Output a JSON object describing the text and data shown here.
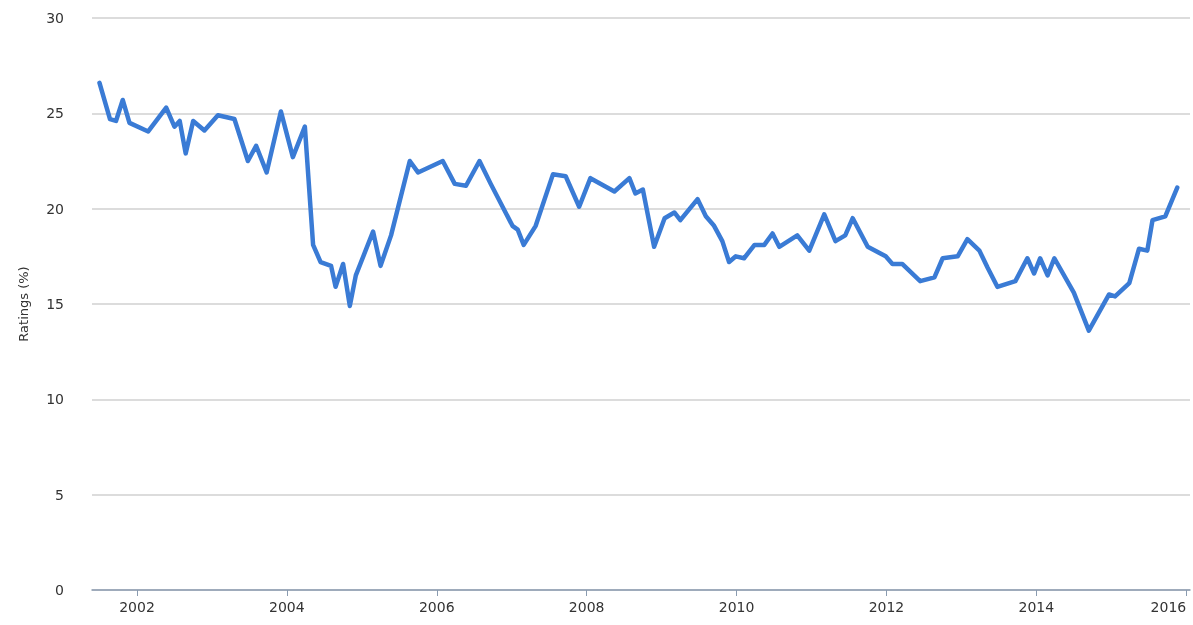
{
  "chart_data": {
    "type": "line",
    "ylabel": "Ratings (%)",
    "grid": "y",
    "marker": "none",
    "line_style": "solid",
    "xlim": [
      2001.4,
      2016.05
    ],
    "xticks": [
      2002,
      2004,
      2006,
      2008,
      2010,
      2012,
      2014,
      2016
    ],
    "ylim": [
      0,
      30
    ],
    "yticks": [
      0,
      5,
      10,
      15,
      20,
      25,
      30
    ],
    "series": [
      {
        "color": "#3a7bd5",
        "x": [
          2001.5,
          2001.64,
          2001.72,
          2001.81,
          2001.9,
          2002.15,
          2002.39,
          2002.5,
          2002.57,
          2002.65,
          2002.75,
          2002.9,
          2003.08,
          2003.3,
          2003.48,
          2003.59,
          2003.73,
          2003.92,
          2004.08,
          2004.24,
          2004.35,
          2004.45,
          2004.59,
          2004.65,
          2004.75,
          2004.84,
          2004.92,
          2005.15,
          2005.25,
          2005.39,
          2005.64,
          2005.75,
          2006.08,
          2006.24,
          2006.39,
          2006.57,
          2006.72,
          2007.01,
          2007.08,
          2007.16,
          2007.32,
          2007.55,
          2007.72,
          2007.9,
          2008.05,
          2008.37,
          2008.57,
          2008.65,
          2008.75,
          2008.9,
          2009.04,
          2009.17,
          2009.25,
          2009.48,
          2009.59,
          2009.7,
          2009.81,
          2009.9,
          2009.99,
          2010.1,
          2010.24,
          2010.37,
          2010.48,
          2010.57,
          2010.81,
          2010.97,
          2011.17,
          2011.32,
          2011.45,
          2011.55,
          2011.75,
          2011.99,
          2012.08,
          2012.21,
          2012.45,
          2012.64,
          2012.75,
          2012.95,
          2013.08,
          2013.24,
          2013.35,
          2013.48,
          2013.72,
          2013.88,
          2013.97,
          2014.05,
          2014.15,
          2014.24,
          2014.5,
          2014.7,
          2014.97,
          2015.05,
          2015.24,
          2015.37,
          2015.48,
          2015.55,
          2015.72,
          2015.88
        ],
        "values": [
          26.6,
          24.7,
          24.6,
          25.7,
          24.5,
          24.05,
          25.3,
          24.3,
          24.6,
          22.9,
          24.6,
          24.1,
          24.9,
          24.7,
          22.5,
          23.3,
          21.9,
          25.1,
          22.7,
          24.3,
          18.1,
          17.2,
          17.0,
          15.9,
          17.1,
          14.9,
          16.5,
          18.8,
          17.0,
          18.6,
          22.5,
          21.9,
          22.5,
          21.3,
          21.2,
          22.5,
          21.3,
          19.1,
          18.9,
          18.1,
          19.1,
          21.8,
          21.7,
          20.1,
          21.6,
          20.9,
          21.6,
          20.8,
          21.0,
          18.0,
          19.5,
          19.8,
          19.4,
          20.5,
          19.6,
          19.1,
          18.3,
          17.2,
          17.5,
          17.4,
          18.1,
          18.1,
          18.7,
          18.0,
          18.6,
          17.8,
          19.7,
          18.3,
          18.6,
          19.5,
          18.0,
          17.5,
          17.1,
          17.1,
          16.2,
          16.4,
          17.4,
          17.5,
          18.4,
          17.8,
          16.9,
          15.9,
          16.2,
          17.4,
          16.6,
          17.4,
          16.5,
          17.4,
          15.6,
          13.6,
          15.5,
          15.4,
          16.1,
          17.9,
          17.8,
          19.4,
          19.6,
          21.1
        ]
      }
    ]
  }
}
